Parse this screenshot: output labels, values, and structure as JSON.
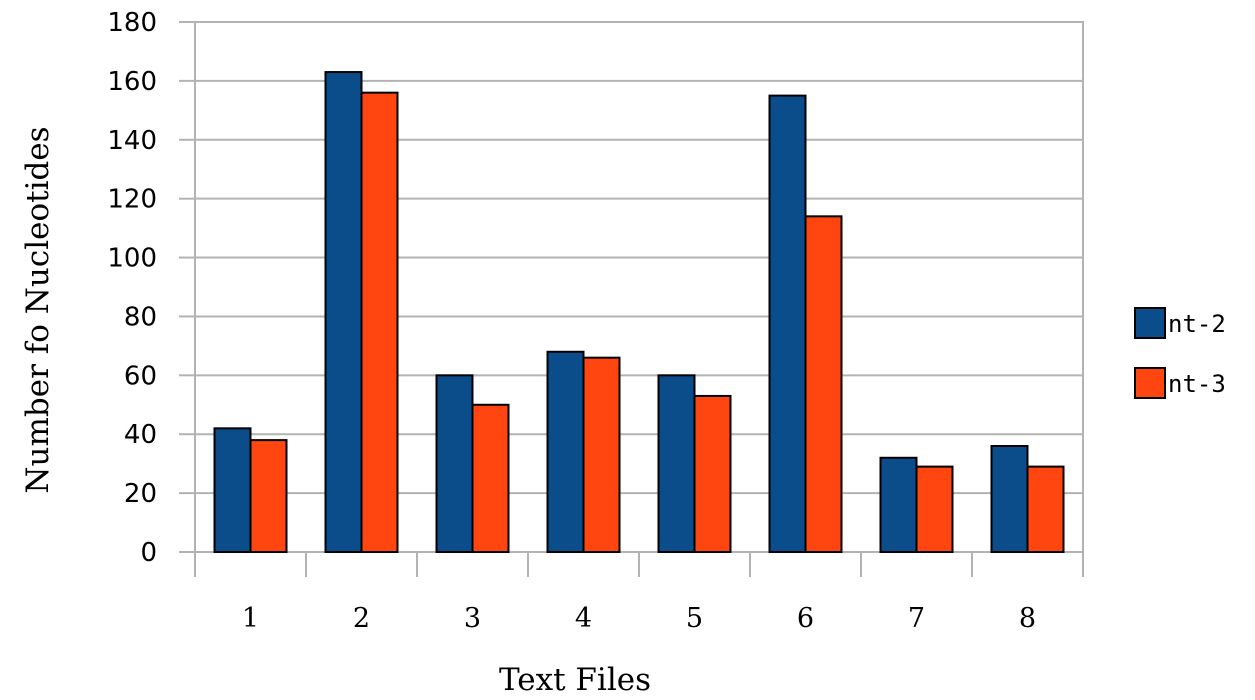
{
  "chart_data": {
    "type": "bar",
    "title": "",
    "xlabel": "Text Files",
    "ylabel": "Number fo Nucleotides",
    "categories": [
      "1",
      "2",
      "3",
      "4",
      "5",
      "6",
      "7",
      "8"
    ],
    "series": [
      {
        "name": "nt-2",
        "color": "#0b4d8a",
        "values": [
          42,
          163,
          60,
          68,
          60,
          155,
          32,
          36
        ]
      },
      {
        "name": "nt-3",
        "color": "#ff4510",
        "values": [
          38,
          156,
          50,
          66,
          53,
          114,
          29,
          29
        ]
      }
    ],
    "ylim": [
      0,
      180
    ],
    "yticks": [
      0,
      20,
      40,
      60,
      80,
      100,
      120,
      140,
      160,
      180
    ],
    "grid": true,
    "legend_position": "right"
  }
}
